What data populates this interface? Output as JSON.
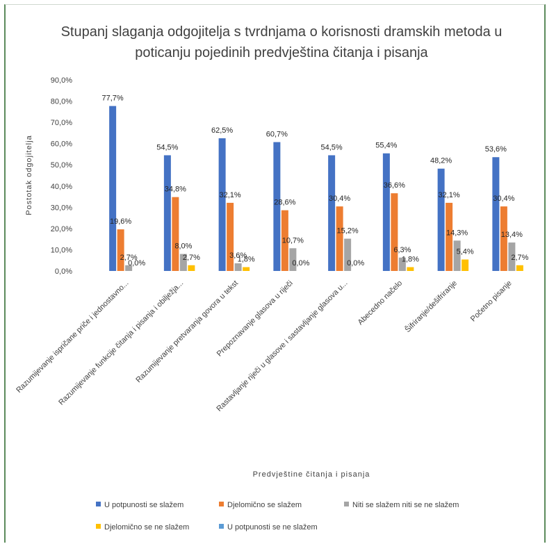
{
  "chart_data": {
    "type": "bar",
    "title": "Stupanj slaganja odgojitelja s tvrdnjama o korisnosti dramskih metoda u poticanju pojedinih predvještina čitanja i pisanja",
    "title_lines": [
      "Stupanj slaganja odgojitelja s tvrdnjama o korisnosti dramskih metoda u",
      "poticanju pojedinih predvještina čitanja i pisanja"
    ],
    "xlabel": "Predvještine čitanja i pisanja",
    "ylabel": "Postotak odgojitelja",
    "ylim": [
      0,
      90
    ],
    "yticks": [
      "0,0%",
      "10,0%",
      "20,0%",
      "30,0%",
      "40,0%",
      "50,0%",
      "60,0%",
      "70,0%",
      "80,0%",
      "90,0%"
    ],
    "categories": [
      "Razumijevanje ispričane priče i jednostavno...",
      "Razumijevanje funkcije čitanja i pisanja i obilježja...",
      "Razumijevanje pretvaranja govora u tekst",
      "Prepoznavanje glasova u riječi",
      "Rastavljanje riječi u glasove i sastavljanje glasova u...",
      "Abecedno načelo",
      "Šifriranje/dešifriranje",
      "Početno pisanje"
    ],
    "series": [
      {
        "name": "U potpunosti se slažem",
        "color": "#4472C4",
        "values": [
          77.7,
          54.5,
          62.5,
          60.7,
          54.5,
          55.4,
          48.2,
          53.6
        ],
        "labels": [
          "77,7%",
          "54,5%",
          "62,5%",
          "60,7%",
          "54,5%",
          "55,4%",
          "48,2%",
          "53,6%"
        ]
      },
      {
        "name": "Djelomično se slažem",
        "color": "#ED7D31",
        "values": [
          19.6,
          34.8,
          32.1,
          28.6,
          30.4,
          36.6,
          32.1,
          30.4
        ],
        "labels": [
          "19,6%",
          "34,8%",
          "32,1%",
          "28,6%",
          "30,4%",
          "36,6%",
          "32,1%",
          "30,4%"
        ]
      },
      {
        "name": "Niti se slažem niti se ne slažem",
        "color": "#A5A5A5",
        "values": [
          2.7,
          8.0,
          3.6,
          10.7,
          15.2,
          6.3,
          14.3,
          13.4
        ],
        "labels": [
          "2,7%",
          "8,0%",
          "3,6%",
          "10,7%",
          "15,2%",
          "6,3%",
          "14,3%",
          "13,4%"
        ]
      },
      {
        "name": "Djelomično se ne slažem",
        "color": "#FFC000",
        "values": [
          0.0,
          2.7,
          1.8,
          0.0,
          0.0,
          1.8,
          5.4,
          2.7
        ],
        "labels": [
          "0,0%",
          "2,7%",
          "1,8%",
          "0,0%",
          "0,0%",
          "1,8%",
          "5,4%",
          "2,7%"
        ]
      },
      {
        "name": "U potpunosti se ne slažem",
        "color": "#5B9BD5",
        "values": [
          0,
          0,
          0,
          0,
          0,
          0,
          0,
          0
        ],
        "labels": [
          "",
          "",
          "",
          "",
          "",
          "",
          "",
          ""
        ]
      }
    ],
    "grid": false,
    "legend_position": "bottom"
  }
}
